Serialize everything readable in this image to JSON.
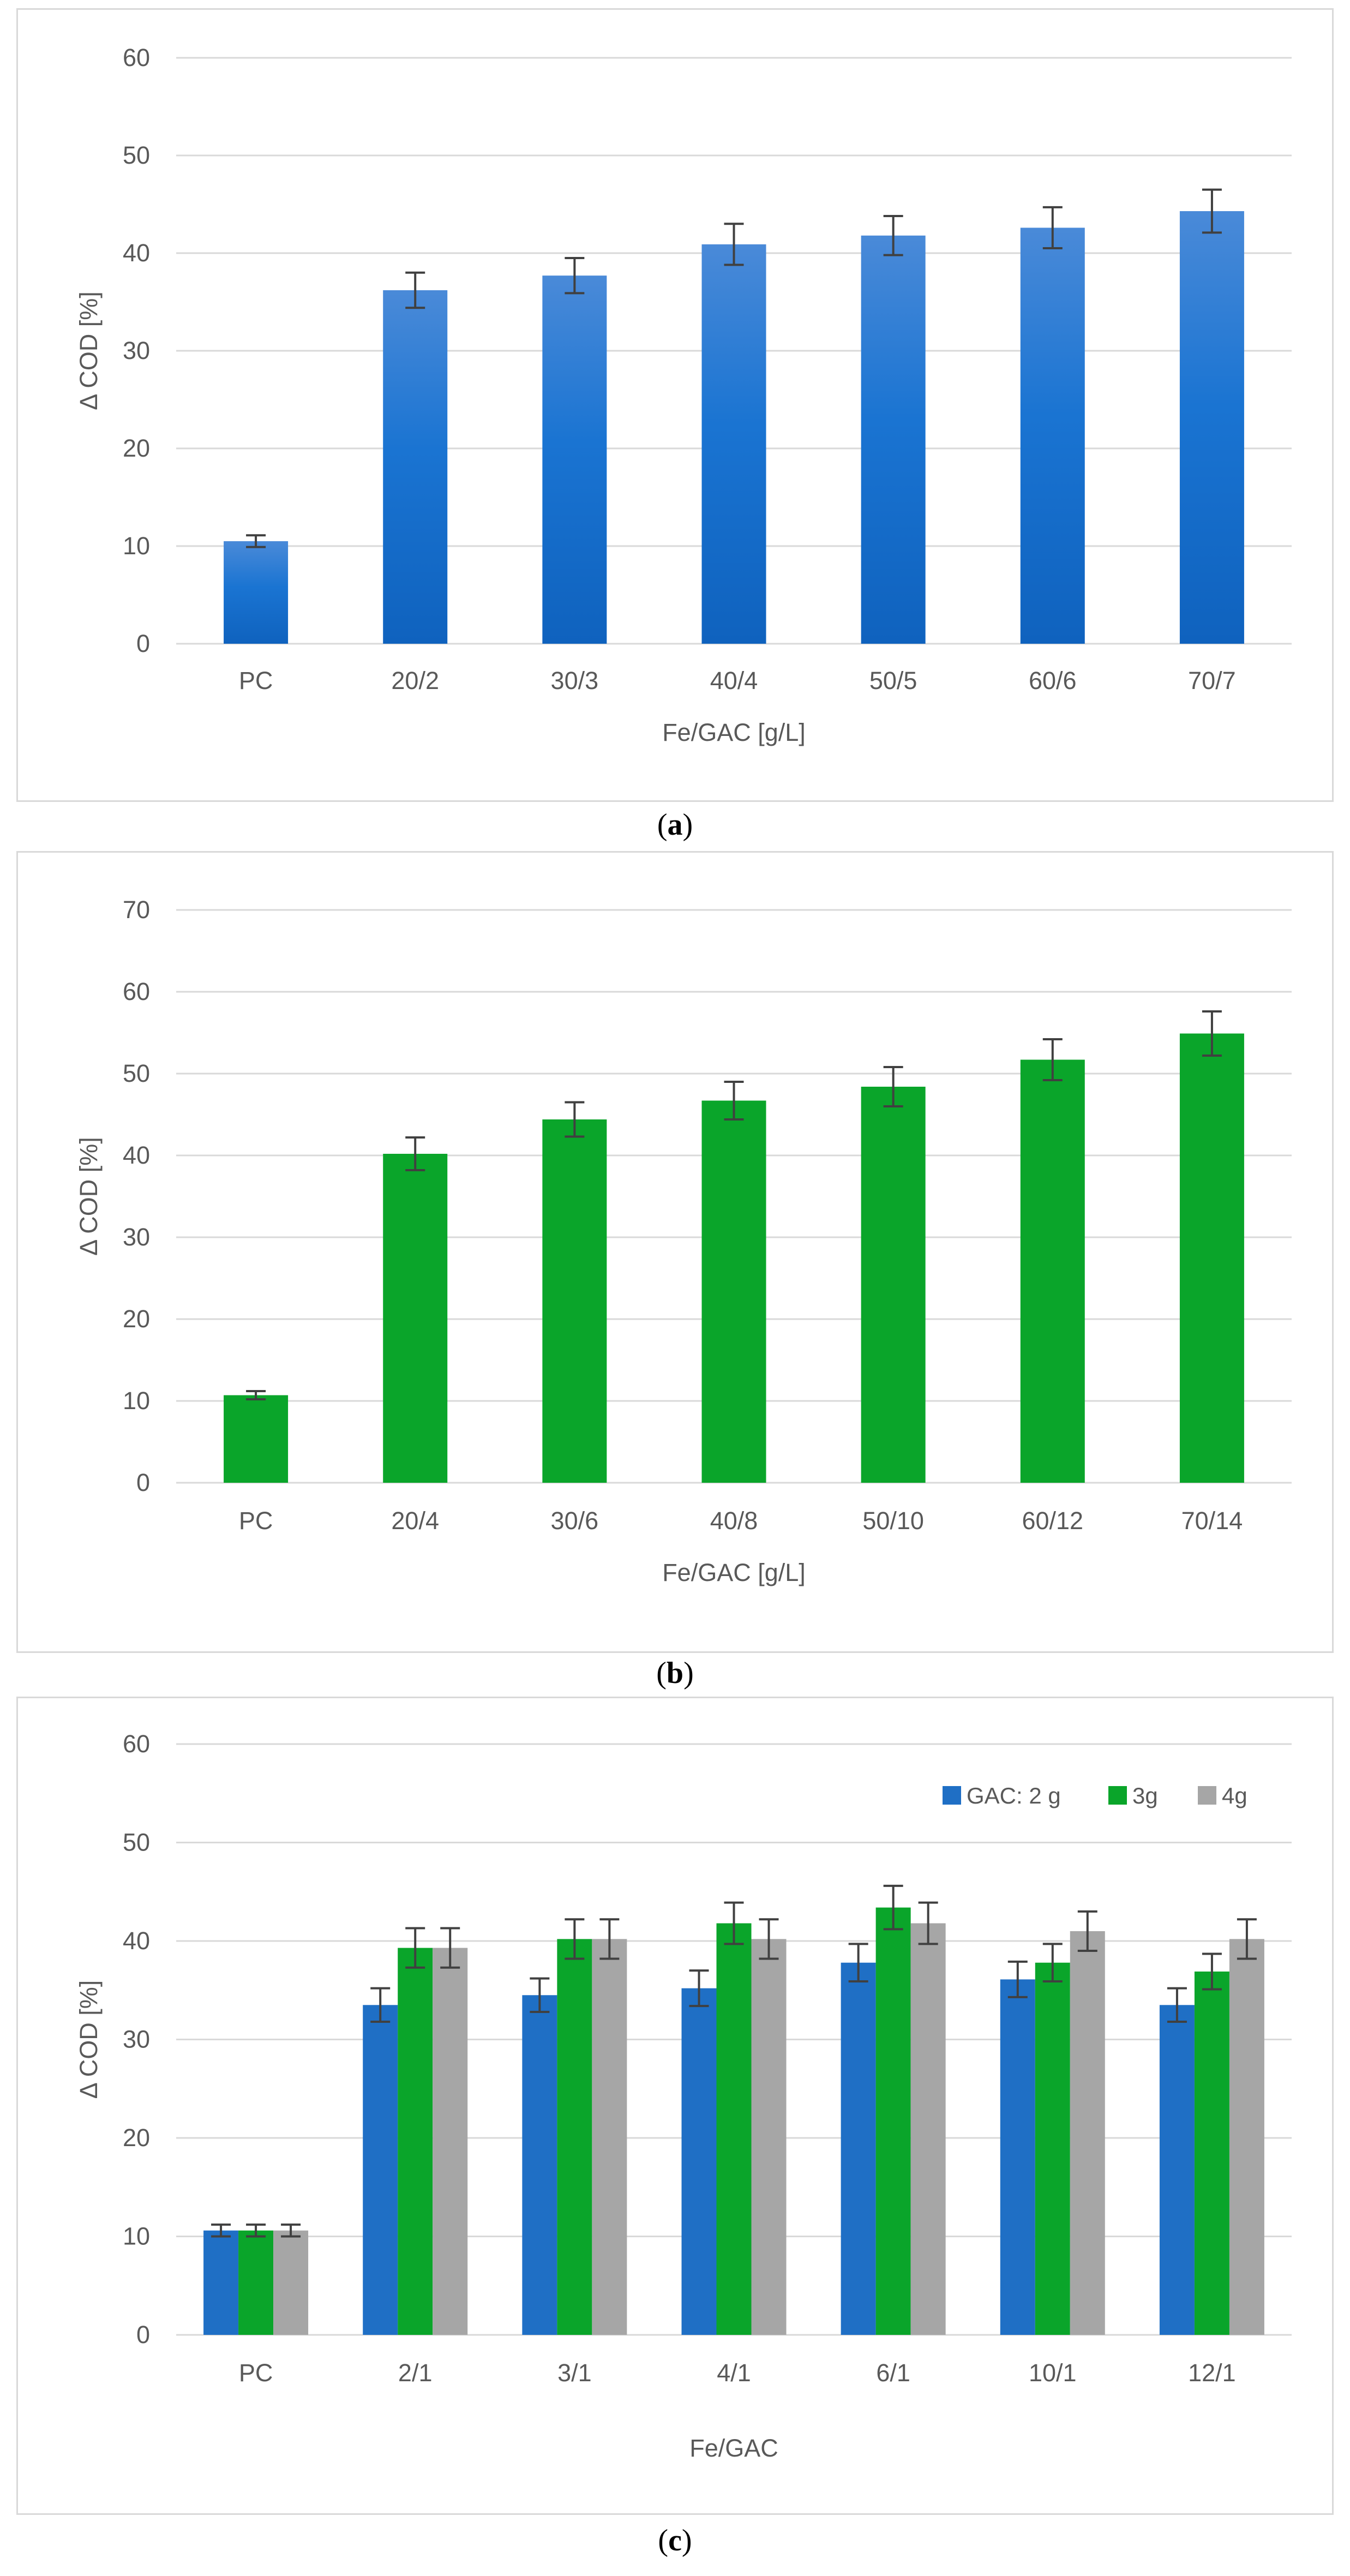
{
  "colors": {
    "blue": "#1F6FC5",
    "blue_top": "#4A8AD8",
    "green": "#0AA52A",
    "gray": "#A6A6A6",
    "grid": "#D9D9D9",
    "error_bar": "#404040",
    "text": "#595959"
  },
  "captions": {
    "a": "a",
    "b": "b",
    "c": "c"
  },
  "chart_data": [
    {
      "id": "a",
      "type": "bar",
      "categories": [
        "PC",
        "20/2",
        "30/3",
        "40/4",
        "50/5",
        "60/6",
        "70/7"
      ],
      "series": [
        {
          "name": "",
          "color": "#1F6FC5",
          "values": [
            10.5,
            36.2,
            37.7,
            40.9,
            41.8,
            42.6,
            44.3
          ],
          "errors": [
            0.6,
            1.8,
            1.8,
            2.1,
            2.0,
            2.1,
            2.2
          ]
        }
      ],
      "ylabel": "Δ COD [%]",
      "xlabel": "Fe/GAC [g/L]",
      "ylim": [
        0,
        60
      ],
      "yticks": [
        "0",
        "10",
        "20",
        "30",
        "40",
        "50",
        "60"
      ],
      "legend": null
    },
    {
      "id": "b",
      "type": "bar",
      "categories": [
        "PC",
        "20/4",
        "30/6",
        "40/8",
        "50/10",
        "60/12",
        "70/14"
      ],
      "series": [
        {
          "name": "",
          "color": "#0AA52A",
          "values": [
            10.7,
            40.2,
            44.4,
            46.7,
            48.4,
            51.7,
            54.9
          ],
          "errors": [
            0.5,
            2.0,
            2.1,
            2.3,
            2.4,
            2.5,
            2.7
          ]
        }
      ],
      "ylabel": "Δ COD [%]",
      "xlabel": "Fe/GAC [g/L]",
      "ylim": [
        0,
        70
      ],
      "yticks": [
        "0",
        "10",
        "20",
        "30",
        "40",
        "50",
        "60",
        "70"
      ],
      "legend": null
    },
    {
      "id": "c",
      "type": "bar",
      "categories": [
        "PC",
        "2/1",
        "3/1",
        "4/1",
        "6/1",
        "10/1",
        "12/1"
      ],
      "series": [
        {
          "name": "GAC: 2 g",
          "color": "#1F6FC5",
          "values": [
            10.6,
            33.5,
            34.5,
            35.2,
            37.8,
            36.1,
            33.5
          ],
          "errors": [
            0.6,
            1.7,
            1.7,
            1.8,
            1.9,
            1.8,
            1.7
          ]
        },
        {
          "name": "3g",
          "color": "#0AA52A",
          "values": [
            10.6,
            39.3,
            40.2,
            41.8,
            43.4,
            37.8,
            36.9
          ],
          "errors": [
            0.6,
            2.0,
            2.0,
            2.1,
            2.2,
            1.9,
            1.8
          ]
        },
        {
          "name": "4g",
          "color": "#A6A6A6",
          "values": [
            10.6,
            39.3,
            40.2,
            40.2,
            41.8,
            41.0,
            40.2
          ],
          "errors": [
            0.6,
            2.0,
            2.0,
            2.0,
            2.1,
            2.0,
            2.0
          ]
        }
      ],
      "ylabel": "Δ COD [%]",
      "xlabel": "Fe/GAC",
      "ylim": [
        0,
        60
      ],
      "yticks": [
        "0",
        "10",
        "20",
        "30",
        "40",
        "50",
        "60"
      ],
      "legend": "top-right"
    }
  ]
}
